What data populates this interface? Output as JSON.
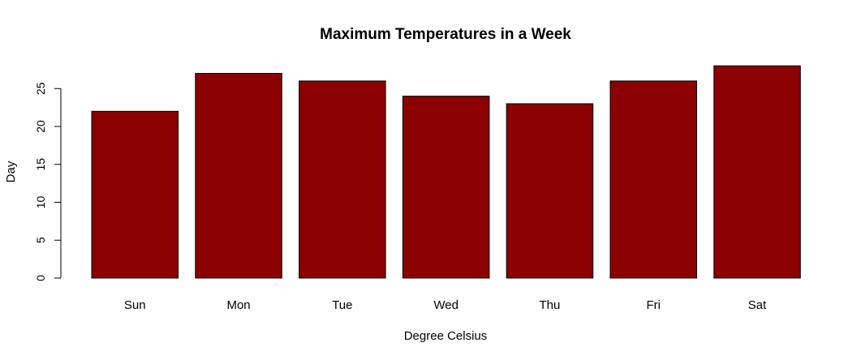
{
  "chart_data": {
    "type": "bar",
    "title": "Maximum Temperatures in a Week",
    "xlabel": "Degree Celsius",
    "ylabel": "Day",
    "categories": [
      "Sun",
      "Mon",
      "Tue",
      "Wed",
      "Thu",
      "Fri",
      "Sat"
    ],
    "values": [
      22,
      27,
      26,
      24,
      23,
      26,
      28
    ],
    "ylim": [
      0,
      28
    ],
    "yticks": [
      0,
      5,
      10,
      15,
      20,
      25
    ],
    "bar_color": "#8b0000",
    "bar_border_color": "#000000",
    "grid": false,
    "legend": "none"
  }
}
